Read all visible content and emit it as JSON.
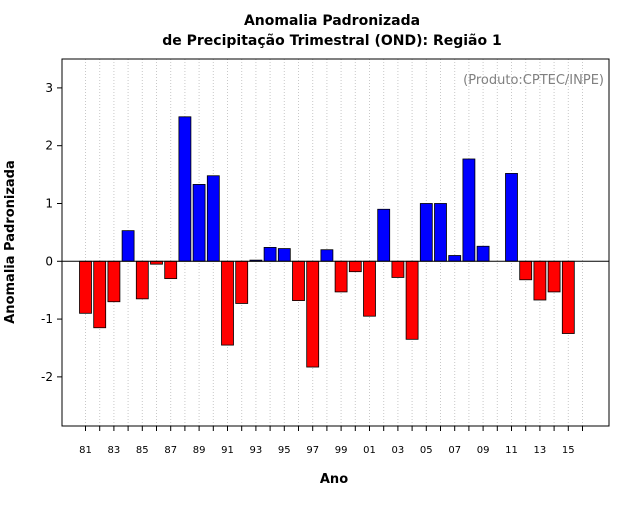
{
  "chart_data": {
    "type": "bar",
    "title": "Anomalia Padronizada",
    "subtitle": "de Precipitação Trimestral (OND): Região 1",
    "annotation": "(Produto:CPTEC/INPE)",
    "xlabel": "Ano",
    "ylabel": "Anomalia Padronizada",
    "ylim": [
      -2.85,
      3.5
    ],
    "yticks": [
      -2,
      -1,
      0,
      1,
      2,
      3
    ],
    "grid": "vertical-dotted",
    "positive_color": "#0000ff",
    "negative_color": "#ff0000",
    "grid_color": "#c8c8c8",
    "x_tick_labels": [
      "81",
      "83",
      "85",
      "87",
      "89",
      "91",
      "93",
      "95",
      "97",
      "99",
      "01",
      "03",
      "05",
      "07",
      "09",
      "11",
      "13",
      "15"
    ],
    "categories": [
      "1981",
      "1982",
      "1983",
      "1984",
      "1985",
      "1986",
      "1987",
      "1988",
      "1989",
      "1990",
      "1991",
      "1992",
      "1993",
      "1994",
      "1995",
      "1996",
      "1997",
      "1998",
      "1999",
      "2000",
      "2001",
      "2002",
      "2003",
      "2004",
      "2005",
      "2006",
      "2007",
      "2008",
      "2009",
      "2010",
      "2011",
      "2012",
      "2013",
      "2014",
      "2015",
      "2016"
    ],
    "values": [
      -0.9,
      -1.15,
      -0.7,
      0.53,
      -0.65,
      -0.05,
      -0.3,
      2.5,
      1.33,
      1.48,
      -1.45,
      -0.73,
      0.02,
      0.24,
      0.22,
      -0.68,
      -1.83,
      0.2,
      -0.53,
      -0.18,
      -0.95,
      0.9,
      -0.28,
      -1.35,
      1.0,
      1.0,
      0.1,
      1.77,
      0.26,
      0.0,
      1.52,
      -0.32,
      -0.67,
      -0.53,
      -1.25,
      0.0
    ]
  }
}
